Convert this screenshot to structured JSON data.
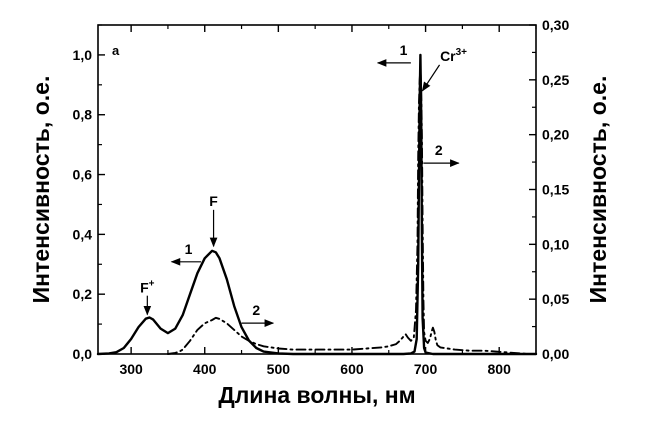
{
  "chart_data": {
    "type": "line",
    "panel_label": "а",
    "xlabel": "Длина волны, нм",
    "ylabel_left": "Интенсивность, о.е.",
    "ylabel_right": "Интенсивность, о.е.",
    "xlim": [
      255,
      850
    ],
    "ylim_left": [
      0,
      1.1
    ],
    "ylim_right": [
      0,
      0.3
    ],
    "x_ticks": [
      {
        "value": 300,
        "label": "300"
      },
      {
        "value": 400,
        "label": "400"
      },
      {
        "value": 500,
        "label": "500"
      },
      {
        "value": 600,
        "label": "600"
      },
      {
        "value": 700,
        "label": "700"
      },
      {
        "value": 800,
        "label": "800"
      }
    ],
    "y_left_ticks": [
      {
        "value": 0.0,
        "label": "0,0"
      },
      {
        "value": 0.2,
        "label": "0,2"
      },
      {
        "value": 0.4,
        "label": "0,4"
      },
      {
        "value": 0.6,
        "label": "0,6"
      },
      {
        "value": 0.8,
        "label": "0,8"
      },
      {
        "value": 1.0,
        "label": "1,0"
      }
    ],
    "y_right_ticks": [
      {
        "value": 0.0,
        "label": "0,00"
      },
      {
        "value": 0.05,
        "label": "0,05"
      },
      {
        "value": 0.1,
        "label": "0,10"
      },
      {
        "value": 0.15,
        "label": "0,15"
      },
      {
        "value": 0.2,
        "label": "0,20"
      },
      {
        "value": 0.25,
        "label": "0,25"
      },
      {
        "value": 0.3,
        "label": "0,30"
      }
    ],
    "grid": false,
    "series": [
      {
        "axis": "left",
        "style": "solid",
        "x": [
          255,
          270,
          280,
          290,
          300,
          310,
          320,
          325,
          330,
          340,
          350,
          360,
          370,
          380,
          390,
          400,
          410,
          415,
          420,
          430,
          440,
          450,
          460,
          470,
          480,
          500,
          520,
          550,
          600,
          650,
          670,
          680,
          685,
          688,
          690,
          691,
          692,
          693,
          694,
          695,
          696,
          698,
          700,
          710,
          750,
          800,
          850
        ],
        "y": [
          0.0,
          0.002,
          0.006,
          0.02,
          0.05,
          0.09,
          0.118,
          0.122,
          0.115,
          0.085,
          0.07,
          0.085,
          0.13,
          0.2,
          0.27,
          0.32,
          0.345,
          0.34,
          0.32,
          0.25,
          0.16,
          0.09,
          0.045,
          0.02,
          0.008,
          0.002,
          0.0,
          0.0,
          0.0,
          0.0,
          0.0,
          0.002,
          0.008,
          0.05,
          0.3,
          0.6,
          0.85,
          1.0,
          0.8,
          0.4,
          0.12,
          0.02,
          0.005,
          0.0,
          0.0,
          0.0,
          0.0
        ]
      },
      {
        "axis": "right",
        "style": "dashdot",
        "x": [
          350,
          360,
          365,
          370,
          380,
          390,
          400,
          410,
          415,
          420,
          430,
          440,
          450,
          460,
          470,
          480,
          500,
          520,
          550,
          580,
          600,
          620,
          640,
          650,
          660,
          665,
          670,
          673,
          676,
          680,
          684,
          687,
          689,
          690,
          691,
          692,
          693,
          694,
          695,
          696,
          697,
          698,
          700,
          703,
          706,
          708,
          710,
          712,
          714,
          716,
          720,
          730,
          740,
          760,
          780,
          800,
          820,
          840,
          850
        ],
        "y": [
          0.0,
          0.001,
          0.002,
          0.004,
          0.012,
          0.022,
          0.028,
          0.031,
          0.033,
          0.032,
          0.028,
          0.022,
          0.016,
          0.012,
          0.009,
          0.007,
          0.005,
          0.004,
          0.004,
          0.004,
          0.004,
          0.005,
          0.006,
          0.007,
          0.009,
          0.012,
          0.016,
          0.018,
          0.015,
          0.012,
          0.015,
          0.04,
          0.1,
          0.18,
          0.23,
          0.25,
          0.26,
          0.24,
          0.2,
          0.12,
          0.05,
          0.02,
          0.012,
          0.01,
          0.014,
          0.02,
          0.024,
          0.02,
          0.012,
          0.008,
          0.006,
          0.005,
          0.004,
          0.003,
          0.003,
          0.002,
          0.001,
          0.0,
          0.0
        ]
      }
    ],
    "annotations": [
      {
        "text": "F",
        "sup": "+",
        "x": 322,
        "y": 0.205,
        "arrow_from_y": 0.195,
        "arrow_to_y": 0.132
      },
      {
        "text": "F",
        "sup": "",
        "x": 412,
        "y": 0.495,
        "arrow_from_y": 0.482,
        "arrow_to_y": 0.36
      },
      {
        "text": "1",
        "sup": "",
        "x": 378,
        "y": 0.335,
        "arrow_tail_x": 395,
        "arrow_head_x": 355
      },
      {
        "text": "2",
        "sup": "",
        "x": 470,
        "y": 0.13,
        "arrow_tail_x": 450,
        "arrow_head_x": 493
      },
      {
        "text": "1",
        "sup": "",
        "x": 670,
        "y": 1.0,
        "arrow_tail_x": 680,
        "arrow_head_x": 635
      },
      {
        "text": "2",
        "sup": "",
        "x": 718,
        "y": 0.665,
        "arrow_tail_x": 697,
        "arrow_head_x": 745
      },
      {
        "text": "Cr",
        "sup": "3+",
        "x": 738,
        "y": 0.98
      }
    ]
  }
}
